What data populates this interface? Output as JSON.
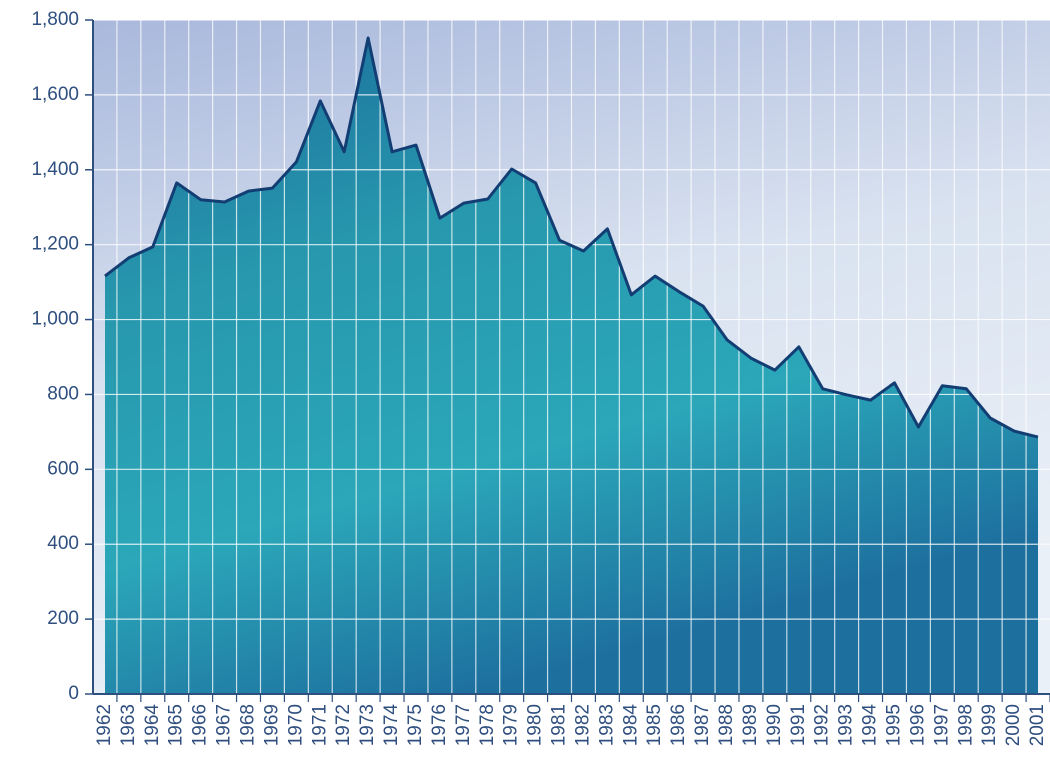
{
  "chart_data": {
    "type": "area",
    "categories": [
      "1962",
      "1963",
      "1964",
      "1965",
      "1966",
      "1967",
      "1968",
      "1969",
      "1970",
      "1971",
      "1972",
      "1973",
      "1974",
      "1975",
      "1976",
      "1977",
      "1978",
      "1979",
      "1980",
      "1981",
      "1982",
      "1983",
      "1984",
      "1985",
      "1986",
      "1987",
      "1988",
      "1989",
      "1990",
      "1991",
      "1992",
      "1993",
      "1994",
      "1995",
      "1996",
      "1997",
      "1998",
      "1999",
      "2000",
      "2001"
    ],
    "values": [
      1116,
      1165,
      1194,
      1365,
      1320,
      1314,
      1343,
      1351,
      1421,
      1584,
      1448,
      1752,
      1448,
      1466,
      1271,
      1311,
      1322,
      1402,
      1365,
      1212,
      1183,
      1242,
      1066,
      1116,
      1074,
      1036,
      946,
      897,
      865,
      927,
      815,
      799,
      785,
      831,
      713,
      823,
      815,
      737,
      702,
      686
    ],
    "color": "#1f6f9a",
    "ylim": [
      0,
      1800
    ],
    "yticks": [
      0,
      200,
      400,
      600,
      800,
      {
        "value": 1000,
        "label": "1,000"
      },
      {
        "value": 1200,
        "label": "1,200"
      },
      {
        "value": 1400,
        "label": "1,400"
      },
      {
        "value": 1600,
        "label": "1,600"
      },
      {
        "value": 1800,
        "label": "1,800"
      }
    ],
    "grid": true
  }
}
